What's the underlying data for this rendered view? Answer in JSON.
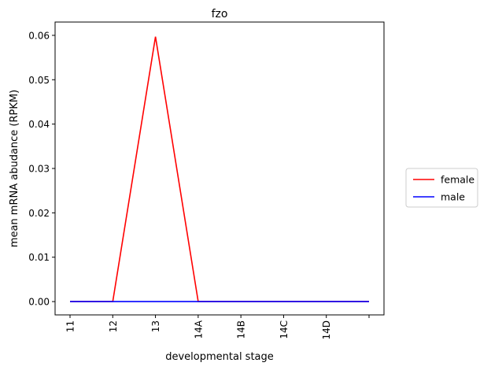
{
  "chart_data": {
    "type": "line",
    "title": "fzo",
    "xlabel": "developmental stage",
    "ylabel": "mean mRNA abudance (RPKM)",
    "categories": [
      "11",
      "12",
      "13",
      "14A",
      "14B",
      "14C",
      "14D",
      ""
    ],
    "ylim": [
      -0.003,
      0.063
    ],
    "yticks": [
      0.0,
      0.01,
      0.02,
      0.03,
      0.04,
      0.05,
      0.06
    ],
    "ytick_labels": [
      "0.00",
      "0.01",
      "0.02",
      "0.03",
      "0.04",
      "0.05",
      "0.06"
    ],
    "grid": false,
    "legend_position": "right",
    "series": [
      {
        "name": "female",
        "color": "#ff0000",
        "values": [
          0.0,
          0.0,
          0.0597,
          0.0,
          0.0,
          0.0,
          0.0,
          0.0
        ]
      },
      {
        "name": "male",
        "color": "#0000ff",
        "values": [
          0.0,
          0.0,
          0.0,
          0.0,
          0.0,
          0.0,
          0.0,
          0.0
        ]
      }
    ]
  }
}
